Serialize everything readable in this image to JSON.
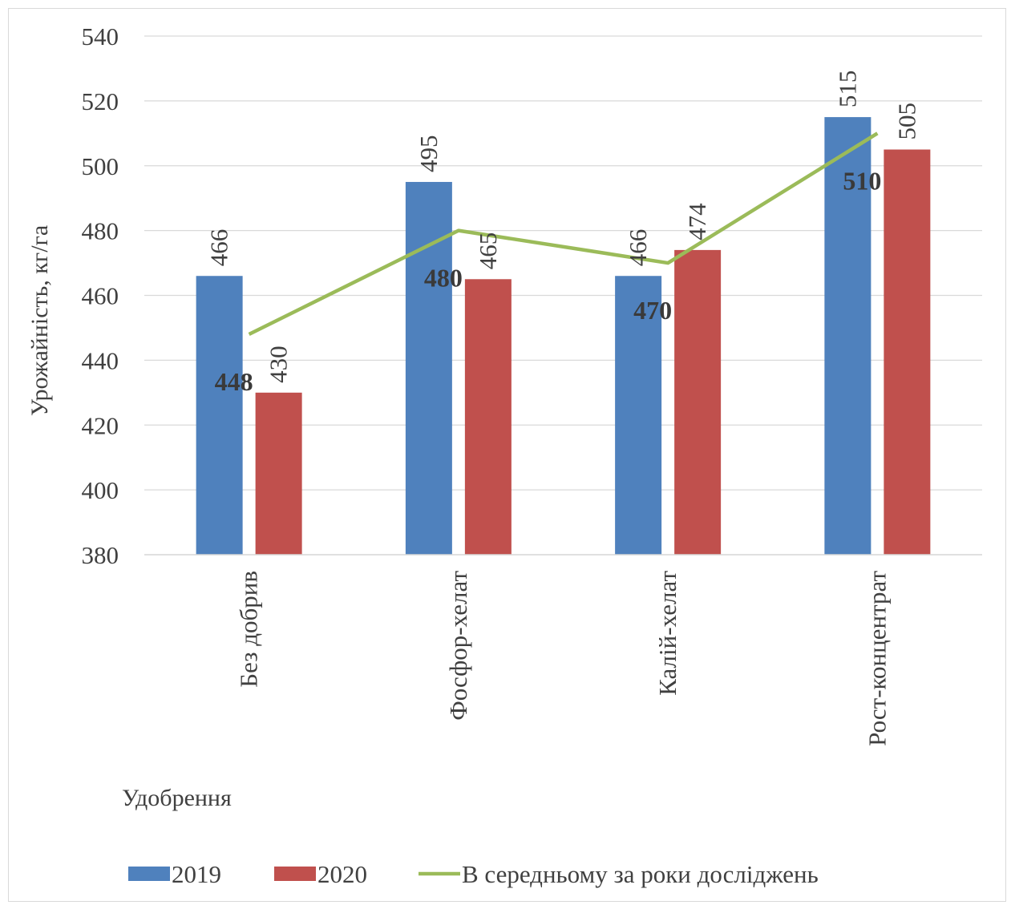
{
  "chart_data": {
    "type": "bar",
    "categories": [
      "Без добрив",
      "Фосфор-хелат",
      "Калій-хелат",
      "Рост-концентрат"
    ],
    "series": [
      {
        "name": "2019",
        "kind": "bar",
        "values": [
          466,
          495,
          466,
          515
        ],
        "color": "#4f81bd"
      },
      {
        "name": "2020",
        "kind": "bar",
        "values": [
          430,
          465,
          474,
          505
        ],
        "color": "#c0504d"
      },
      {
        "name": "В середньому за роки досліджень",
        "kind": "line",
        "values": [
          448,
          480,
          470,
          510
        ],
        "color": "#9bbb59"
      }
    ],
    "xlabel": "Удобрення",
    "ylabel": "Урожайність, кг/га",
    "ylim": [
      380,
      540
    ],
    "yticks": [
      380,
      400,
      420,
      440,
      460,
      480,
      500,
      520,
      540
    ],
    "grid": true,
    "legend_position": "bottom"
  }
}
